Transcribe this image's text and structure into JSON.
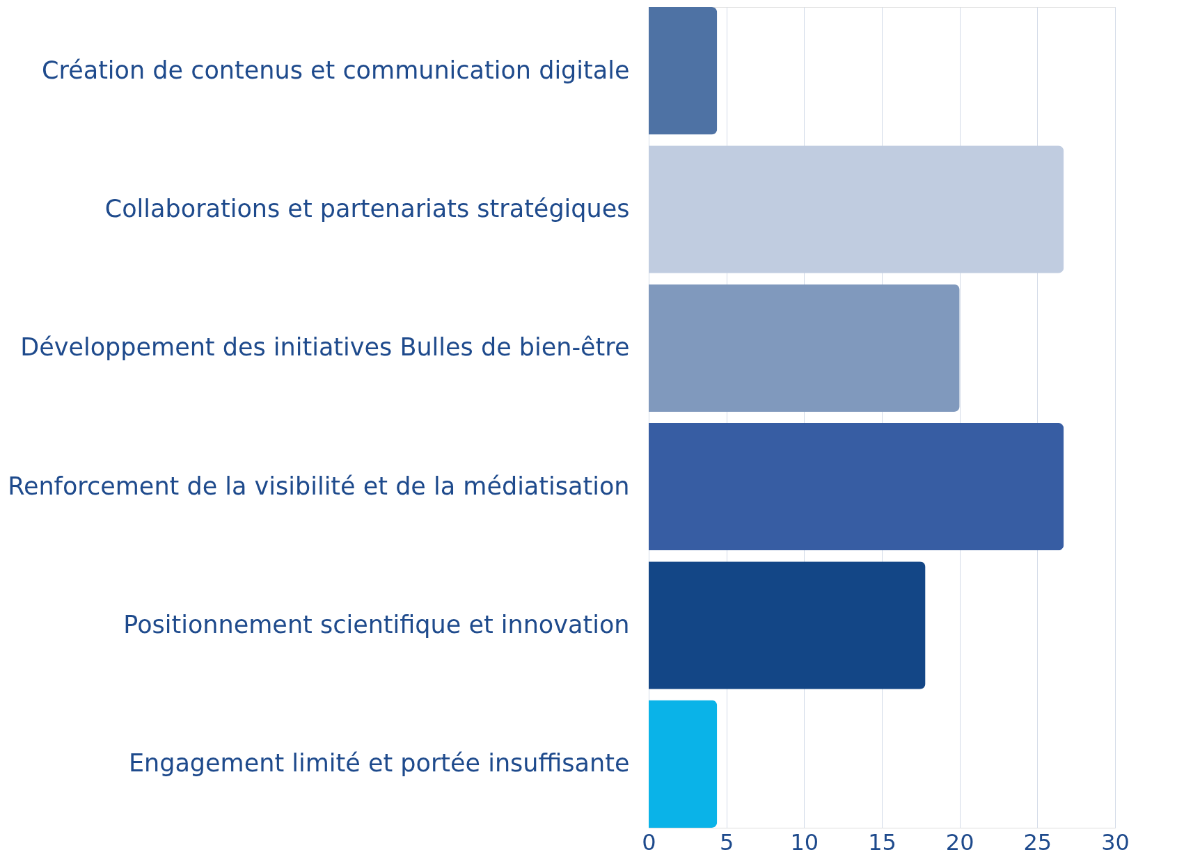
{
  "chart_data": {
    "type": "bar",
    "orientation": "horizontal",
    "categories": [
      "Création de contenus et communication digitale",
      "Collaborations et partenariats stratégiques",
      "Développement des initiatives Bulles de bien-être",
      "Renforcement de la visibilité et de la médiatisation",
      "Positionnement scientifique et innovation",
      "Engagement limité et portée insuffisante"
    ],
    "values": [
      4.4,
      26.7,
      20.0,
      26.7,
      17.8,
      4.4
    ],
    "colors": [
      "#4e72a4",
      "#c0cce0",
      "#8099bd",
      "#375da3",
      "#134686",
      "#0ab3e8"
    ],
    "xlim": [
      0,
      30
    ],
    "xticks": [
      0,
      5,
      10,
      15,
      20,
      25,
      30
    ],
    "grid": "x"
  }
}
